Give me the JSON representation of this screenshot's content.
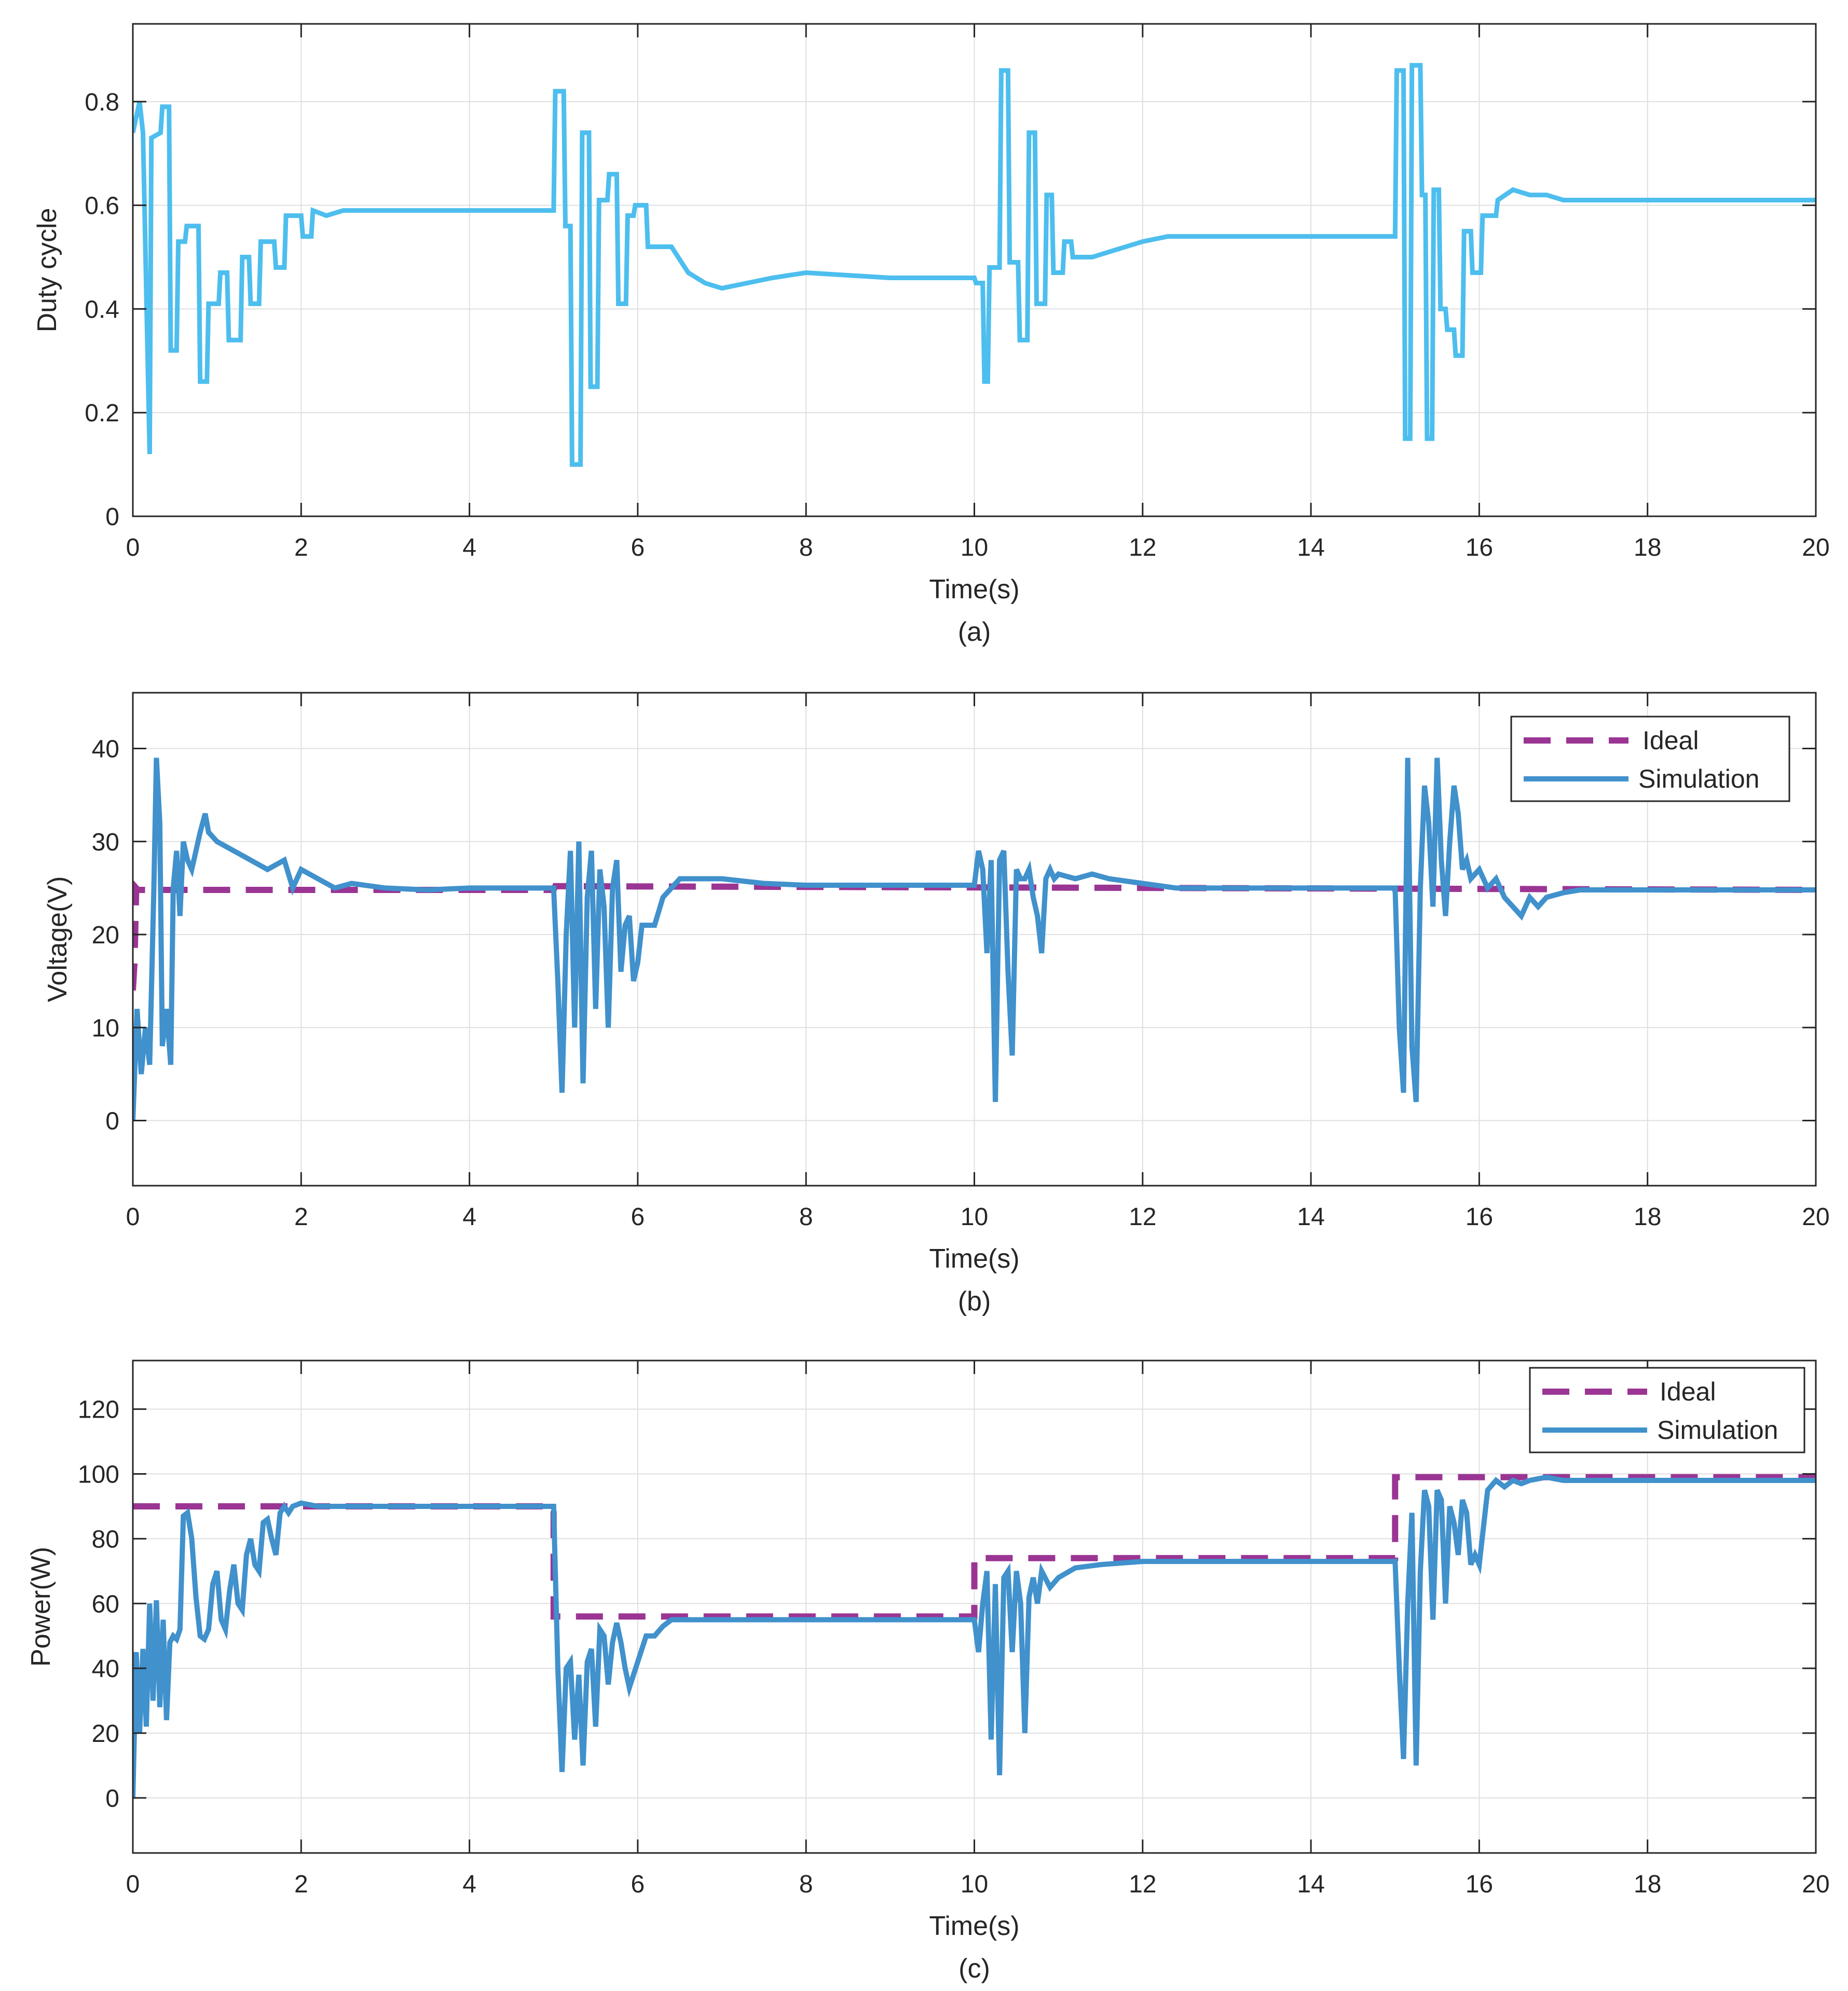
{
  "colors": {
    "duty": "#4DBEEE",
    "simulation": "#4091CC",
    "ideal": "#9B3594",
    "grid": "#dfdfdf",
    "axis": "#262626"
  },
  "chart_data": [
    {
      "type": "line",
      "caption": "(a)",
      "xlabel": "Time(s)",
      "ylabel": "Duty cycle",
      "xlim": [
        0,
        20
      ],
      "ylim": [
        0,
        0.95
      ],
      "xticks": [
        0,
        2,
        4,
        6,
        8,
        10,
        12,
        14,
        16,
        18,
        20
      ],
      "xtick_labels": [
        "0",
        "2",
        "4",
        "6",
        "8",
        "10",
        "12",
        "14",
        "16",
        "18",
        "20"
      ],
      "yticks": [
        0,
        0.2,
        0.4,
        0.6,
        0.8
      ],
      "ytick_labels": [
        "0",
        "0.2",
        "0.4",
        "0.6",
        "0.8"
      ],
      "grid": true,
      "legend": null,
      "series": [
        {
          "name": "Duty cycle",
          "style": "solid",
          "color": "#4DBEEE",
          "x": [
            0,
            0.08,
            0.12,
            0.2,
            0.22,
            0.33,
            0.35,
            0.43,
            0.45,
            0.52,
            0.54,
            0.62,
            0.64,
            0.78,
            0.8,
            0.88,
            0.9,
            1.02,
            1.04,
            1.12,
            1.14,
            1.28,
            1.3,
            1.38,
            1.4,
            1.5,
            1.52,
            1.68,
            1.7,
            1.8,
            1.82,
            2.0,
            2.02,
            2.12,
            2.14,
            2.3,
            2.5,
            2.7,
            3.0,
            3.3,
            3.6,
            4.0,
            5.0,
            5.02,
            5.12,
            5.14,
            5.2,
            5.22,
            5.32,
            5.34,
            5.42,
            5.44,
            5.52,
            5.54,
            5.64,
            5.66,
            5.75,
            5.77,
            5.86,
            5.88,
            5.95,
            5.97,
            6.1,
            6.12,
            6.4,
            6.6,
            6.8,
            7.0,
            7.3,
            7.6,
            8.0,
            9.0,
            10.0,
            10.02,
            10.1,
            10.12,
            10.16,
            10.18,
            10.3,
            10.32,
            10.4,
            10.42,
            10.52,
            10.54,
            10.63,
            10.65,
            10.72,
            10.74,
            10.84,
            10.86,
            10.92,
            10.94,
            11.05,
            11.07,
            11.15,
            11.17,
            11.4,
            11.6,
            11.8,
            12.0,
            12.3,
            12.6,
            13.0,
            13.5,
            14.0,
            15.0,
            15.02,
            15.1,
            15.12,
            15.18,
            15.2,
            15.3,
            15.32,
            15.36,
            15.38,
            15.44,
            15.46,
            15.52,
            15.54,
            15.6,
            15.62,
            15.7,
            15.72,
            15.8,
            15.82,
            15.9,
            15.92,
            16.02,
            16.04,
            16.2,
            16.22,
            16.4,
            16.6,
            16.8,
            17.0,
            17.3,
            17.6,
            18.0,
            19.0,
            20.0
          ],
          "y": [
            0.74,
            0.8,
            0.74,
            0.12,
            0.73,
            0.74,
            0.79,
            0.79,
            0.32,
            0.32,
            0.53,
            0.53,
            0.56,
            0.56,
            0.26,
            0.26,
            0.41,
            0.41,
            0.47,
            0.47,
            0.34,
            0.34,
            0.5,
            0.5,
            0.41,
            0.41,
            0.53,
            0.53,
            0.48,
            0.48,
            0.58,
            0.58,
            0.54,
            0.54,
            0.59,
            0.58,
            0.59,
            0.59,
            0.59,
            0.59,
            0.59,
            0.59,
            0.59,
            0.82,
            0.82,
            0.56,
            0.56,
            0.1,
            0.1,
            0.74,
            0.74,
            0.25,
            0.25,
            0.61,
            0.61,
            0.66,
            0.66,
            0.41,
            0.41,
            0.58,
            0.58,
            0.6,
            0.6,
            0.52,
            0.52,
            0.47,
            0.45,
            0.44,
            0.45,
            0.46,
            0.47,
            0.46,
            0.46,
            0.45,
            0.45,
            0.26,
            0.26,
            0.48,
            0.48,
            0.86,
            0.86,
            0.49,
            0.49,
            0.34,
            0.34,
            0.74,
            0.74,
            0.41,
            0.41,
            0.62,
            0.62,
            0.47,
            0.47,
            0.53,
            0.53,
            0.5,
            0.5,
            0.51,
            0.52,
            0.53,
            0.54,
            0.54,
            0.54,
            0.54,
            0.54,
            0.54,
            0.86,
            0.86,
            0.15,
            0.15,
            0.87,
            0.87,
            0.62,
            0.62,
            0.15,
            0.15,
            0.63,
            0.63,
            0.4,
            0.4,
            0.36,
            0.36,
            0.31,
            0.31,
            0.55,
            0.55,
            0.47,
            0.47,
            0.58,
            0.58,
            0.61,
            0.63,
            0.62,
            0.62,
            0.61,
            0.61,
            0.61,
            0.61,
            0.61,
            0.61
          ]
        }
      ]
    },
    {
      "type": "line",
      "caption": "(b)",
      "xlabel": "Time(s)",
      "ylabel": "Voltage(V)",
      "xlim": [
        0,
        20
      ],
      "ylim": [
        -7,
        46
      ],
      "xticks": [
        0,
        2,
        4,
        6,
        8,
        10,
        12,
        14,
        16,
        18,
        20
      ],
      "xtick_labels": [
        "0",
        "2",
        "4",
        "6",
        "8",
        "10",
        "12",
        "14",
        "16",
        "18",
        "20"
      ],
      "yticks": [
        0,
        10,
        20,
        30,
        40
      ],
      "ytick_labels": [
        "0",
        "10",
        "20",
        "30",
        "40"
      ],
      "grid": true,
      "legend": {
        "position": "top-right",
        "entries": [
          "Ideal",
          "Simulation"
        ]
      },
      "series": [
        {
          "name": "Ideal",
          "style": "dashed",
          "color": "#9B3594",
          "x": [
            0,
            0.02,
            0.04,
            0.06,
            5.0,
            5.02,
            20.0
          ],
          "y": [
            14,
            17,
            25,
            24.8,
            24.8,
            25.2,
            24.8
          ]
        },
        {
          "name": "Simulation",
          "style": "solid",
          "color": "#4091CC",
          "x": [
            0,
            0.05,
            0.1,
            0.15,
            0.2,
            0.25,
            0.28,
            0.32,
            0.35,
            0.4,
            0.45,
            0.48,
            0.52,
            0.56,
            0.6,
            0.65,
            0.7,
            0.8,
            0.86,
            0.9,
            1.0,
            1.2,
            1.4,
            1.6,
            1.8,
            1.9,
            2.0,
            2.2,
            2.4,
            2.6,
            3.0,
            3.5,
            4.0,
            5.0,
            5.05,
            5.1,
            5.15,
            5.2,
            5.25,
            5.3,
            5.35,
            5.4,
            5.45,
            5.5,
            5.55,
            5.6,
            5.65,
            5.7,
            5.75,
            5.8,
            5.85,
            5.9,
            5.95,
            6.0,
            6.05,
            6.1,
            6.2,
            6.3,
            6.4,
            6.5,
            6.6,
            6.8,
            7.0,
            7.5,
            8.0,
            9.0,
            10.0,
            10.05,
            10.1,
            10.15,
            10.2,
            10.25,
            10.3,
            10.35,
            10.4,
            10.45,
            10.5,
            10.55,
            10.6,
            10.65,
            10.7,
            10.75,
            10.8,
            10.85,
            10.9,
            10.95,
            11.0,
            11.2,
            11.4,
            11.6,
            12.0,
            12.4,
            12.8,
            13.5,
            14.0,
            15.0,
            15.05,
            15.1,
            15.15,
            15.2,
            15.25,
            15.3,
            15.35,
            15.4,
            15.45,
            15.5,
            15.55,
            15.6,
            15.65,
            15.7,
            15.75,
            15.8,
            15.85,
            15.9,
            16.0,
            16.1,
            16.2,
            16.3,
            16.4,
            16.5,
            16.6,
            16.7,
            16.8,
            17.0,
            17.2,
            17.5,
            18.0,
            19.0,
            20.0
          ],
          "y": [
            0,
            12,
            5,
            10,
            6,
            25,
            39,
            32,
            8,
            12,
            6,
            25,
            29,
            22,
            30,
            28,
            27,
            31,
            33,
            31,
            30,
            29,
            28,
            27,
            28,
            25,
            27,
            26,
            25,
            25.5,
            25,
            24.8,
            25,
            25,
            15,
            3,
            20,
            29,
            10,
            30,
            4,
            24,
            29,
            12,
            27,
            23,
            10,
            25,
            28,
            16,
            21,
            22,
            15,
            17,
            21,
            21,
            21,
            24,
            25,
            26,
            26,
            26,
            26,
            25.5,
            25.3,
            25.3,
            25.3,
            29,
            27,
            18,
            28,
            2,
            28,
            29,
            16,
            7,
            27,
            26,
            26,
            27,
            24,
            22,
            18,
            26,
            27,
            26,
            26.5,
            26,
            26.5,
            26,
            25.5,
            25,
            25,
            25,
            25,
            25,
            10,
            3,
            39,
            8,
            2,
            25,
            36,
            32,
            23,
            39,
            28,
            22,
            30,
            36,
            33,
            27,
            28,
            26,
            27,
            25,
            26,
            24,
            23,
            22,
            24,
            23,
            24,
            24.5,
            24.8,
            24.8,
            24.8,
            24.8,
            24.8
          ]
        }
      ]
    },
    {
      "type": "line",
      "caption": "(c)",
      "xlabel": "Time(s)",
      "ylabel": "Power(W)",
      "xlim": [
        0,
        20
      ],
      "ylim": [
        -17,
        135
      ],
      "xticks": [
        0,
        2,
        4,
        6,
        8,
        10,
        12,
        14,
        16,
        18,
        20
      ],
      "xtick_labels": [
        "0",
        "2",
        "4",
        "6",
        "8",
        "10",
        "12",
        "14",
        "16",
        "18",
        "20"
      ],
      "yticks": [
        0,
        20,
        40,
        60,
        80,
        100,
        120
      ],
      "ytick_labels": [
        "0",
        "20",
        "40",
        "60",
        "80",
        "100",
        "120"
      ],
      "grid": true,
      "legend": {
        "position": "top-right",
        "entries": [
          "Ideal",
          "Simulation"
        ]
      },
      "series": [
        {
          "name": "Ideal",
          "style": "dashed",
          "color": "#9B3594",
          "x": [
            0,
            5.0,
            5.0,
            10.0,
            10.0,
            15.0,
            15.0,
            20.0
          ],
          "y": [
            90,
            90,
            56,
            56,
            74,
            74,
            99,
            99
          ]
        },
        {
          "name": "Simulation",
          "style": "solid",
          "color": "#4091CC",
          "x": [
            0,
            0.04,
            0.08,
            0.12,
            0.16,
            0.2,
            0.24,
            0.28,
            0.32,
            0.36,
            0.4,
            0.44,
            0.48,
            0.52,
            0.56,
            0.6,
            0.65,
            0.7,
            0.75,
            0.8,
            0.85,
            0.9,
            0.95,
            1.0,
            1.05,
            1.1,
            1.15,
            1.2,
            1.25,
            1.3,
            1.35,
            1.4,
            1.45,
            1.5,
            1.55,
            1.6,
            1.65,
            1.7,
            1.75,
            1.8,
            1.85,
            1.9,
            2.0,
            2.2,
            2.5,
            3.0,
            3.5,
            4.0,
            4.5,
            5.0,
            5.05,
            5.1,
            5.15,
            5.2,
            5.25,
            5.3,
            5.35,
            5.4,
            5.45,
            5.5,
            5.55,
            5.6,
            5.65,
            5.7,
            5.75,
            5.8,
            5.85,
            5.9,
            5.95,
            6.0,
            6.1,
            6.2,
            6.3,
            6.4,
            6.5,
            6.7,
            7.0,
            7.5,
            8.0,
            9.0,
            10.0,
            10.05,
            10.1,
            10.15,
            10.2,
            10.25,
            10.3,
            10.35,
            10.4,
            10.45,
            10.5,
            10.55,
            10.6,
            10.65,
            10.7,
            10.75,
            10.8,
            10.9,
            11.0,
            11.2,
            11.5,
            12.0,
            12.5,
            13.0,
            14.0,
            15.0,
            15.05,
            15.1,
            15.15,
            15.2,
            15.25,
            15.3,
            15.35,
            15.4,
            15.45,
            15.5,
            15.55,
            15.6,
            15.65,
            15.7,
            15.75,
            15.8,
            15.85,
            15.9,
            15.95,
            16.0,
            16.1,
            16.2,
            16.3,
            16.4,
            16.5,
            16.6,
            16.8,
            17.0,
            17.3,
            17.6,
            18.0,
            19.0,
            20.0
          ],
          "y": [
            0,
            45,
            20,
            46,
            22,
            60,
            30,
            61,
            28,
            55,
            24,
            48,
            50,
            49,
            52,
            87,
            88,
            80,
            62,
            50,
            49,
            52,
            66,
            70,
            55,
            52,
            64,
            72,
            60,
            58,
            75,
            80,
            72,
            70,
            85,
            86,
            80,
            75,
            88,
            90,
            88,
            90,
            91,
            90,
            90,
            90,
            90,
            90,
            90,
            90,
            40,
            8,
            40,
            42,
            18,
            38,
            10,
            42,
            46,
            22,
            52,
            50,
            35,
            48,
            54,
            48,
            40,
            34,
            38,
            42,
            50,
            50,
            53,
            55,
            55,
            55,
            55,
            55,
            55,
            55,
            55,
            45,
            60,
            70,
            18,
            66,
            7,
            68,
            70,
            45,
            70,
            60,
            20,
            62,
            68,
            60,
            70,
            65,
            68,
            71,
            72,
            73,
            73,
            73,
            73,
            73,
            40,
            12,
            60,
            88,
            10,
            70,
            95,
            90,
            55,
            95,
            92,
            60,
            90,
            85,
            75,
            92,
            88,
            72,
            75,
            72,
            95,
            98,
            96,
            98,
            97,
            98,
            99,
            98,
            98,
            98,
            98,
            98,
            98
          ]
        }
      ]
    }
  ]
}
